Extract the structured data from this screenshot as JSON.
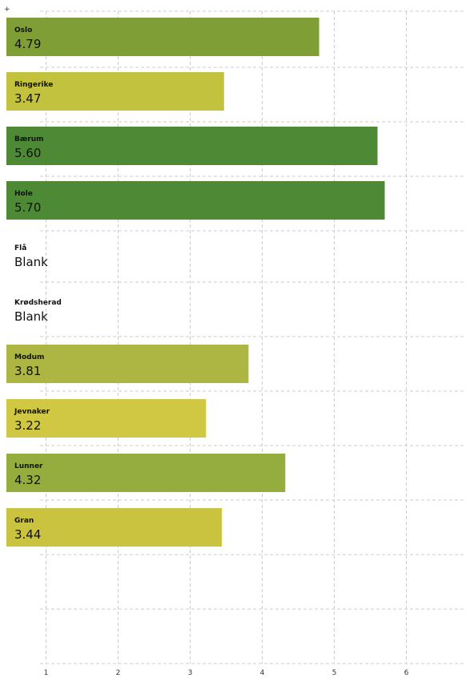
{
  "chart_data": {
    "type": "bar",
    "orientation": "horizontal",
    "categories": [
      "Oslo",
      "Ringerike",
      "Bærum",
      "Hole",
      "Flå",
      "Krødsherad",
      "Modum",
      "Jevnaker",
      "Lunner",
      "Gran"
    ],
    "values": [
      4.79,
      3.47,
      5.6,
      5.7,
      null,
      null,
      3.81,
      3.22,
      4.32,
      3.44
    ],
    "value_labels": [
      "4.79",
      "3.47",
      "5.60",
      "5.70",
      "Blank",
      "Blank",
      "3.81",
      "3.22",
      "4.32",
      "3.44"
    ],
    "bar_colors": [
      "#7f9e36",
      "#c3c23e",
      "#4e8a36",
      "#4e8a36",
      null,
      null,
      "#adb543",
      "#d0c743",
      "#95ac3f",
      "#c9c33f"
    ],
    "x_ticks": [
      "1",
      "2",
      "3",
      "4",
      "5",
      "6"
    ],
    "xlim": [
      0.45,
      6.35
    ],
    "grid": true,
    "corner_mark": "+"
  }
}
